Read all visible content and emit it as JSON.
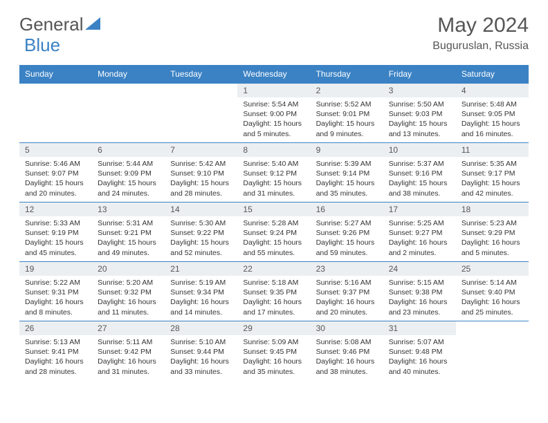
{
  "brand": {
    "part1": "General",
    "part2": "Blue"
  },
  "title": "May 2024",
  "location": "Buguruslan, Russia",
  "colors": {
    "header_bg": "#3b82c4",
    "header_text": "#ffffff",
    "daynum_bg": "#eceff1",
    "border": "#3b82c4",
    "body_text": "#333333"
  },
  "weekdays": [
    "Sunday",
    "Monday",
    "Tuesday",
    "Wednesday",
    "Thursday",
    "Friday",
    "Saturday"
  ],
  "weeks": [
    [
      {
        "n": "",
        "sr": "",
        "ss": "",
        "dl": ""
      },
      {
        "n": "",
        "sr": "",
        "ss": "",
        "dl": ""
      },
      {
        "n": "",
        "sr": "",
        "ss": "",
        "dl": ""
      },
      {
        "n": "1",
        "sr": "Sunrise: 5:54 AM",
        "ss": "Sunset: 9:00 PM",
        "dl": "Daylight: 15 hours and 5 minutes."
      },
      {
        "n": "2",
        "sr": "Sunrise: 5:52 AM",
        "ss": "Sunset: 9:01 PM",
        "dl": "Daylight: 15 hours and 9 minutes."
      },
      {
        "n": "3",
        "sr": "Sunrise: 5:50 AM",
        "ss": "Sunset: 9:03 PM",
        "dl": "Daylight: 15 hours and 13 minutes."
      },
      {
        "n": "4",
        "sr": "Sunrise: 5:48 AM",
        "ss": "Sunset: 9:05 PM",
        "dl": "Daylight: 15 hours and 16 minutes."
      }
    ],
    [
      {
        "n": "5",
        "sr": "Sunrise: 5:46 AM",
        "ss": "Sunset: 9:07 PM",
        "dl": "Daylight: 15 hours and 20 minutes."
      },
      {
        "n": "6",
        "sr": "Sunrise: 5:44 AM",
        "ss": "Sunset: 9:09 PM",
        "dl": "Daylight: 15 hours and 24 minutes."
      },
      {
        "n": "7",
        "sr": "Sunrise: 5:42 AM",
        "ss": "Sunset: 9:10 PM",
        "dl": "Daylight: 15 hours and 28 minutes."
      },
      {
        "n": "8",
        "sr": "Sunrise: 5:40 AM",
        "ss": "Sunset: 9:12 PM",
        "dl": "Daylight: 15 hours and 31 minutes."
      },
      {
        "n": "9",
        "sr": "Sunrise: 5:39 AM",
        "ss": "Sunset: 9:14 PM",
        "dl": "Daylight: 15 hours and 35 minutes."
      },
      {
        "n": "10",
        "sr": "Sunrise: 5:37 AM",
        "ss": "Sunset: 9:16 PM",
        "dl": "Daylight: 15 hours and 38 minutes."
      },
      {
        "n": "11",
        "sr": "Sunrise: 5:35 AM",
        "ss": "Sunset: 9:17 PM",
        "dl": "Daylight: 15 hours and 42 minutes."
      }
    ],
    [
      {
        "n": "12",
        "sr": "Sunrise: 5:33 AM",
        "ss": "Sunset: 9:19 PM",
        "dl": "Daylight: 15 hours and 45 minutes."
      },
      {
        "n": "13",
        "sr": "Sunrise: 5:31 AM",
        "ss": "Sunset: 9:21 PM",
        "dl": "Daylight: 15 hours and 49 minutes."
      },
      {
        "n": "14",
        "sr": "Sunrise: 5:30 AM",
        "ss": "Sunset: 9:22 PM",
        "dl": "Daylight: 15 hours and 52 minutes."
      },
      {
        "n": "15",
        "sr": "Sunrise: 5:28 AM",
        "ss": "Sunset: 9:24 PM",
        "dl": "Daylight: 15 hours and 55 minutes."
      },
      {
        "n": "16",
        "sr": "Sunrise: 5:27 AM",
        "ss": "Sunset: 9:26 PM",
        "dl": "Daylight: 15 hours and 59 minutes."
      },
      {
        "n": "17",
        "sr": "Sunrise: 5:25 AM",
        "ss": "Sunset: 9:27 PM",
        "dl": "Daylight: 16 hours and 2 minutes."
      },
      {
        "n": "18",
        "sr": "Sunrise: 5:23 AM",
        "ss": "Sunset: 9:29 PM",
        "dl": "Daylight: 16 hours and 5 minutes."
      }
    ],
    [
      {
        "n": "19",
        "sr": "Sunrise: 5:22 AM",
        "ss": "Sunset: 9:31 PM",
        "dl": "Daylight: 16 hours and 8 minutes."
      },
      {
        "n": "20",
        "sr": "Sunrise: 5:20 AM",
        "ss": "Sunset: 9:32 PM",
        "dl": "Daylight: 16 hours and 11 minutes."
      },
      {
        "n": "21",
        "sr": "Sunrise: 5:19 AM",
        "ss": "Sunset: 9:34 PM",
        "dl": "Daylight: 16 hours and 14 minutes."
      },
      {
        "n": "22",
        "sr": "Sunrise: 5:18 AM",
        "ss": "Sunset: 9:35 PM",
        "dl": "Daylight: 16 hours and 17 minutes."
      },
      {
        "n": "23",
        "sr": "Sunrise: 5:16 AM",
        "ss": "Sunset: 9:37 PM",
        "dl": "Daylight: 16 hours and 20 minutes."
      },
      {
        "n": "24",
        "sr": "Sunrise: 5:15 AM",
        "ss": "Sunset: 9:38 PM",
        "dl": "Daylight: 16 hours and 23 minutes."
      },
      {
        "n": "25",
        "sr": "Sunrise: 5:14 AM",
        "ss": "Sunset: 9:40 PM",
        "dl": "Daylight: 16 hours and 25 minutes."
      }
    ],
    [
      {
        "n": "26",
        "sr": "Sunrise: 5:13 AM",
        "ss": "Sunset: 9:41 PM",
        "dl": "Daylight: 16 hours and 28 minutes."
      },
      {
        "n": "27",
        "sr": "Sunrise: 5:11 AM",
        "ss": "Sunset: 9:42 PM",
        "dl": "Daylight: 16 hours and 31 minutes."
      },
      {
        "n": "28",
        "sr": "Sunrise: 5:10 AM",
        "ss": "Sunset: 9:44 PM",
        "dl": "Daylight: 16 hours and 33 minutes."
      },
      {
        "n": "29",
        "sr": "Sunrise: 5:09 AM",
        "ss": "Sunset: 9:45 PM",
        "dl": "Daylight: 16 hours and 35 minutes."
      },
      {
        "n": "30",
        "sr": "Sunrise: 5:08 AM",
        "ss": "Sunset: 9:46 PM",
        "dl": "Daylight: 16 hours and 38 minutes."
      },
      {
        "n": "31",
        "sr": "Sunrise: 5:07 AM",
        "ss": "Sunset: 9:48 PM",
        "dl": "Daylight: 16 hours and 40 minutes."
      },
      {
        "n": "",
        "sr": "",
        "ss": "",
        "dl": ""
      }
    ]
  ]
}
